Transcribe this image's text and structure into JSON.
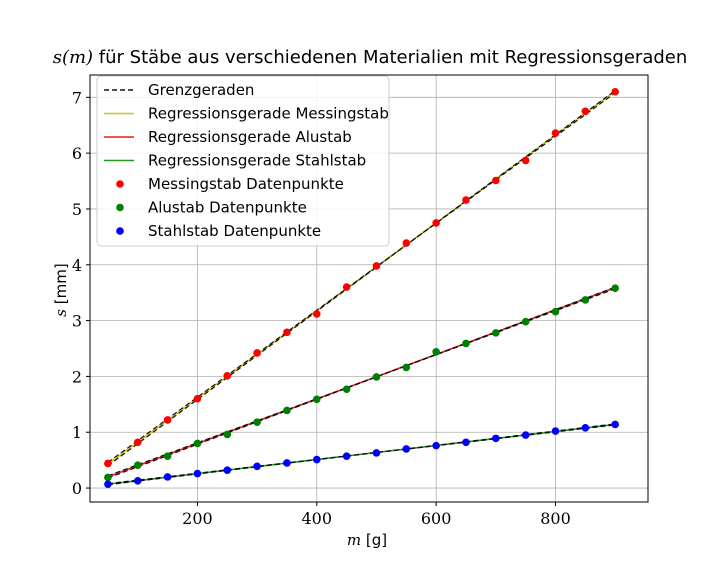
{
  "chart_data": {
    "type": "scatter",
    "title_math": "s(m)",
    "title_rest": " für Stäbe aus verschiedenen Materialien mit Regressionsgeraden",
    "xlabel_math": "m",
    "xlabel_unit": " [g]",
    "ylabel_math": "s",
    "ylabel_unit": " [mm]",
    "xlim": [
      20,
      955
    ],
    "ylim": [
      -0.25,
      7.4
    ],
    "xticks": [
      200,
      400,
      600,
      800
    ],
    "yticks": [
      0,
      1,
      2,
      3,
      4,
      5,
      6,
      7
    ],
    "grid": true,
    "legend_position": "upper-left",
    "x": [
      50,
      100,
      150,
      200,
      250,
      300,
      350,
      400,
      450,
      500,
      550,
      600,
      650,
      700,
      750,
      800,
      850,
      900
    ],
    "regression_lines": [
      {
        "name": "Regressionsgerade Messingstab",
        "color": "#d4c21a",
        "x": [
          50,
          900
        ],
        "y": [
          0.43,
          7.11
        ]
      },
      {
        "name": "Regressionsgerade Alustab",
        "color": "#ee1c1c",
        "x": [
          50,
          900
        ],
        "y": [
          0.2,
          3.59
        ]
      },
      {
        "name": "Regressionsgerade Stahlstab",
        "color": "#1f9a1f",
        "x": [
          50,
          900
        ],
        "y": [
          0.07,
          1.14
        ]
      }
    ],
    "limit_lines": {
      "name": "Grenzgeraden",
      "color": "#111111",
      "lines": [
        {
          "x": [
            50,
            900
          ],
          "y": [
            0.4,
            7.12
          ]
        },
        {
          "x": [
            50,
            900
          ],
          "y": [
            0.46,
            7.08
          ]
        },
        {
          "x": [
            50,
            900
          ],
          "y": [
            0.18,
            3.6
          ]
        },
        {
          "x": [
            50,
            900
          ],
          "y": [
            0.22,
            3.57
          ]
        },
        {
          "x": [
            50,
            900
          ],
          "y": [
            0.06,
            1.15
          ]
        },
        {
          "x": [
            50,
            900
          ],
          "y": [
            0.08,
            1.13
          ]
        }
      ]
    },
    "series": [
      {
        "name": "Messingstab Datenpunkte",
        "color": "#ff0000",
        "values": [
          0.44,
          0.82,
          1.22,
          1.6,
          2.01,
          2.42,
          2.79,
          3.12,
          3.6,
          3.98,
          4.39,
          4.75,
          5.16,
          5.51,
          5.87,
          6.36,
          6.75,
          7.1
        ]
      },
      {
        "name": "Alustab Datenpunkte",
        "color": "#008000",
        "values": [
          0.19,
          0.41,
          0.57,
          0.8,
          0.96,
          1.18,
          1.39,
          1.59,
          1.77,
          1.99,
          2.16,
          2.44,
          2.59,
          2.78,
          2.98,
          3.16,
          3.37,
          3.58
        ]
      },
      {
        "name": "Stahlstab Datenpunkte",
        "color": "#0000ff",
        "values": [
          0.07,
          0.13,
          0.2,
          0.26,
          0.32,
          0.39,
          0.45,
          0.51,
          0.57,
          0.63,
          0.7,
          0.76,
          0.82,
          0.89,
          0.95,
          1.02,
          1.08,
          1.14
        ]
      }
    ]
  }
}
